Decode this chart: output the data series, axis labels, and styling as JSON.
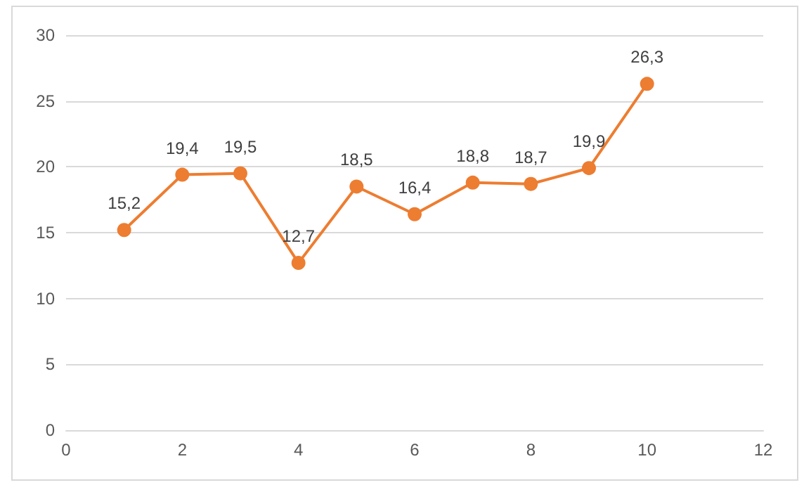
{
  "chart_data": {
    "type": "line",
    "x": [
      1,
      2,
      3,
      4,
      5,
      6,
      7,
      8,
      9,
      10
    ],
    "series": [
      {
        "color": "#ed7d31",
        "values": [
          15.2,
          19.4,
          19.5,
          12.7,
          18.5,
          16.4,
          18.8,
          18.7,
          19.9,
          26.3
        ],
        "value_labels": [
          "15,2",
          "19,4",
          "19,5",
          "12,7",
          "18,5",
          "16,4",
          "18,8",
          "18,7",
          "19,9",
          "26,3"
        ]
      }
    ],
    "xlim": [
      0,
      12
    ],
    "xticks": [
      0,
      2,
      4,
      6,
      8,
      10,
      12
    ],
    "ylim": [
      0,
      30
    ],
    "yticks": [
      0,
      5,
      10,
      15,
      20,
      25,
      30
    ],
    "grid": "y",
    "marker": "circle",
    "line_style": "solid"
  }
}
